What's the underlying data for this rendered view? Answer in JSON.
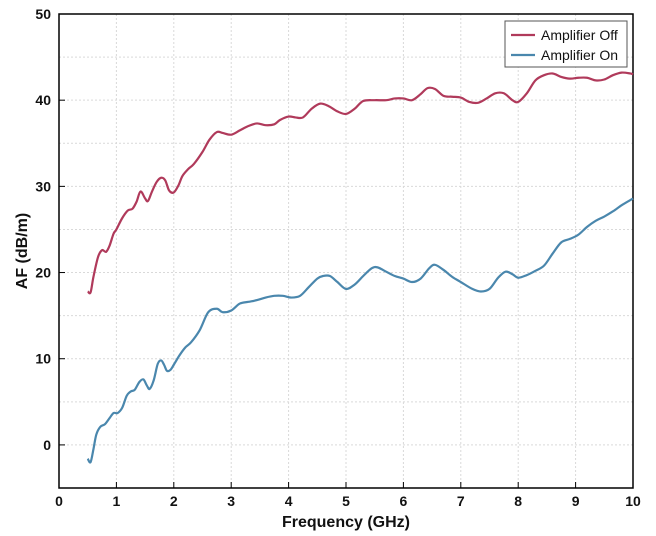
{
  "chart_data": {
    "type": "line",
    "title": "",
    "xlabel": "Frequency (GHz)",
    "ylabel": "AF (dB/m)",
    "xlim": [
      0,
      10
    ],
    "ylim": [
      -5,
      50
    ],
    "xticks": [
      0,
      1,
      2,
      3,
      4,
      5,
      6,
      7,
      8,
      9,
      10
    ],
    "yticks": [
      0,
      10,
      20,
      30,
      40,
      50
    ],
    "grid": true,
    "legend_position": "top-right",
    "series": [
      {
        "name": "Amplifier Off",
        "color": "#b03a5b",
        "x": [
          0.5,
          0.55,
          0.6,
          0.68,
          0.75,
          0.82,
          0.88,
          0.95,
          1.0,
          1.1,
          1.2,
          1.28,
          1.35,
          1.42,
          1.5,
          1.55,
          1.62,
          1.7,
          1.78,
          1.85,
          1.92,
          2.0,
          2.08,
          2.15,
          2.25,
          2.35,
          2.5,
          2.62,
          2.75,
          2.85,
          3.0,
          3.15,
          3.3,
          3.45,
          3.6,
          3.75,
          3.85,
          4.0,
          4.12,
          4.25,
          4.4,
          4.55,
          4.7,
          4.85,
          5.0,
          5.15,
          5.3,
          5.5,
          5.7,
          5.85,
          6.0,
          6.15,
          6.3,
          6.42,
          6.55,
          6.7,
          6.85,
          7.0,
          7.15,
          7.3,
          7.45,
          7.6,
          7.75,
          7.9,
          8.0,
          8.15,
          8.3,
          8.45,
          8.6,
          8.75,
          8.9,
          9.05,
          9.2,
          9.35,
          9.5,
          9.65,
          9.8,
          9.95,
          10.0
        ],
        "y": [
          17.8,
          17.7,
          19.5,
          21.8,
          22.6,
          22.4,
          23.1,
          24.5,
          25.0,
          26.3,
          27.2,
          27.4,
          28.2,
          29.4,
          28.6,
          28.3,
          29.4,
          30.5,
          31.0,
          30.7,
          29.5,
          29.3,
          30.1,
          31.2,
          32.0,
          32.6,
          34.0,
          35.4,
          36.3,
          36.2,
          36.0,
          36.5,
          37.0,
          37.3,
          37.1,
          37.2,
          37.7,
          38.1,
          38.0,
          38.0,
          39.0,
          39.6,
          39.3,
          38.7,
          38.4,
          39.0,
          39.9,
          40.0,
          40.0,
          40.2,
          40.2,
          40.0,
          40.7,
          41.4,
          41.3,
          40.5,
          40.4,
          40.3,
          39.8,
          39.7,
          40.2,
          40.8,
          40.8,
          40.0,
          39.8,
          40.8,
          42.3,
          42.9,
          43.1,
          42.7,
          42.5,
          42.6,
          42.6,
          42.3,
          42.4,
          42.9,
          43.2,
          43.1,
          43.0
        ]
      },
      {
        "name": "Amplifier On",
        "color": "#4a87ad",
        "x": [
          0.5,
          0.55,
          0.6,
          0.65,
          0.72,
          0.8,
          0.88,
          0.95,
          1.02,
          1.1,
          1.18,
          1.25,
          1.32,
          1.4,
          1.47,
          1.53,
          1.58,
          1.65,
          1.72,
          1.78,
          1.83,
          1.88,
          1.94,
          2.0,
          2.1,
          2.2,
          2.3,
          2.45,
          2.6,
          2.75,
          2.85,
          3.0,
          3.15,
          3.3,
          3.45,
          3.6,
          3.75,
          3.9,
          4.05,
          4.2,
          4.35,
          4.5,
          4.6,
          4.72,
          4.85,
          5.0,
          5.15,
          5.3,
          5.45,
          5.55,
          5.7,
          5.85,
          6.0,
          6.15,
          6.3,
          6.45,
          6.55,
          6.7,
          6.85,
          7.0,
          7.2,
          7.35,
          7.5,
          7.65,
          7.78,
          7.9,
          8.0,
          8.15,
          8.3,
          8.45,
          8.6,
          8.75,
          8.9,
          9.05,
          9.2,
          9.35,
          9.5,
          9.65,
          9.8,
          9.95,
          10.0
        ],
        "y": [
          -1.6,
          -2.0,
          -0.5,
          1.2,
          2.1,
          2.4,
          3.1,
          3.7,
          3.7,
          4.3,
          5.7,
          6.2,
          6.4,
          7.3,
          7.6,
          6.9,
          6.5,
          7.5,
          9.4,
          9.8,
          9.3,
          8.6,
          8.7,
          9.3,
          10.4,
          11.3,
          11.9,
          13.3,
          15.4,
          15.8,
          15.4,
          15.6,
          16.4,
          16.6,
          16.8,
          17.1,
          17.3,
          17.3,
          17.1,
          17.3,
          18.3,
          19.3,
          19.6,
          19.6,
          18.9,
          18.1,
          18.6,
          19.6,
          20.5,
          20.6,
          20.1,
          19.6,
          19.3,
          18.9,
          19.3,
          20.5,
          20.9,
          20.3,
          19.5,
          18.9,
          18.1,
          17.8,
          18.1,
          19.4,
          20.1,
          19.8,
          19.4,
          19.7,
          20.2,
          20.8,
          22.2,
          23.5,
          23.9,
          24.4,
          25.3,
          26.0,
          26.5,
          27.1,
          27.8,
          28.4,
          28.6
        ]
      }
    ]
  }
}
